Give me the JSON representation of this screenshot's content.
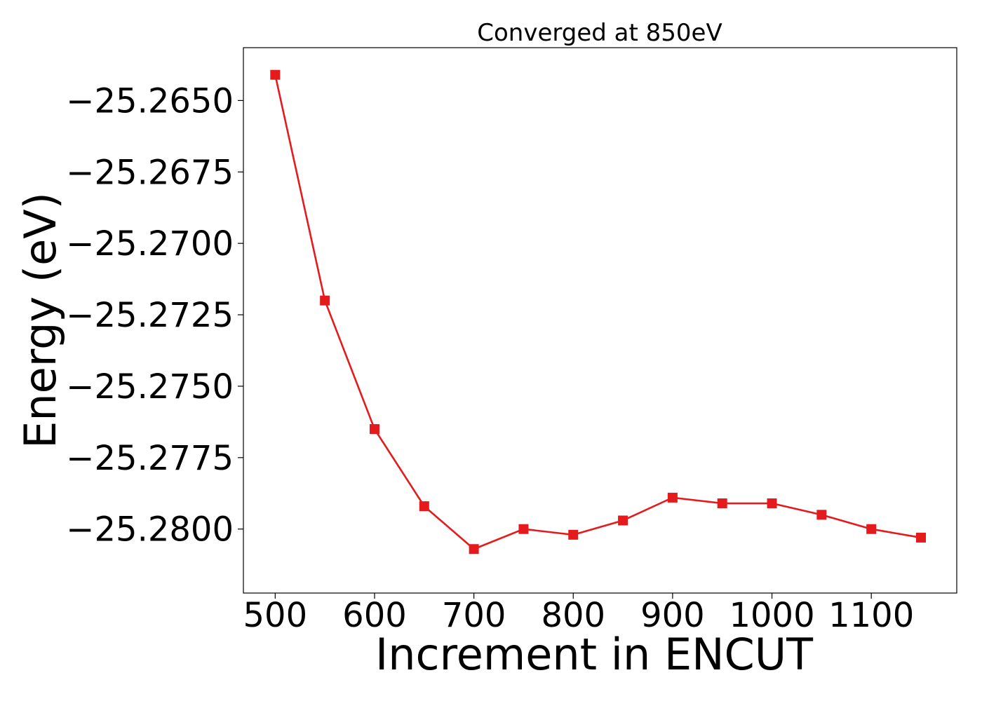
{
  "chart_data": {
    "type": "line",
    "title": "Converged at 850eV",
    "xlabel": "Increment in ENCUT",
    "ylabel": "Energy (eV)",
    "x": [
      500,
      550,
      600,
      650,
      700,
      750,
      800,
      850,
      900,
      950,
      1000,
      1050,
      1100,
      1150
    ],
    "series": [
      {
        "values": [
          -25.2641,
          -25.272,
          -25.2765,
          -25.2792,
          -25.2807,
          -25.28,
          -25.2802,
          -25.2797,
          -25.2789,
          -25.2791,
          -25.2791,
          -25.2795,
          -25.28,
          -25.2803
        ],
        "color": "#e41a1c",
        "marker": "square"
      }
    ],
    "xticks": [
      500,
      600,
      700,
      800,
      900,
      1000,
      1100
    ],
    "xtick_labels": [
      "500",
      "600",
      "700",
      "800",
      "900",
      "1000",
      "1100"
    ],
    "yticks": [
      -25.265,
      -25.2675,
      -25.27,
      -25.2725,
      -25.275,
      -25.2775,
      -25.28
    ],
    "ytick_labels": [
      "−25.2650",
      "−25.2675",
      "−25.2700",
      "−25.2725",
      "−25.2750",
      "−25.2775",
      "−25.2800"
    ],
    "xlim": [
      468,
      1186
    ],
    "ylim": [
      -25.28224,
      -25.26315
    ],
    "grid": false,
    "legend": "none"
  }
}
